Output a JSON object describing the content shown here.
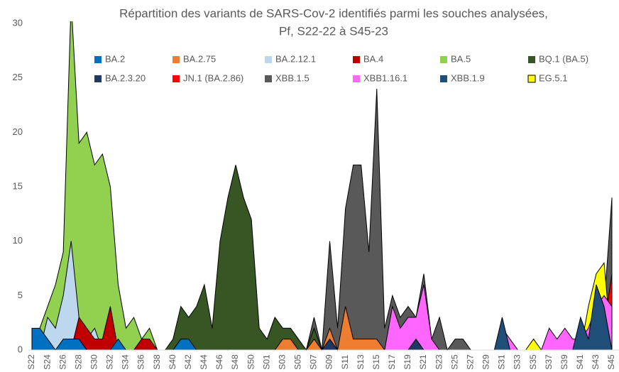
{
  "chart_data": {
    "type": "area",
    "title": [
      "Répartition des variants de SARS-Cov-2 identifiés parmi les souches analysées,",
      "Pf, S22-22 à S45-23"
    ],
    "categories": [
      "S22",
      null,
      "S24",
      null,
      "S26",
      null,
      "S28",
      null,
      "S30",
      null,
      "S32",
      null,
      "S34",
      null,
      "S36",
      null,
      "S38",
      null,
      "S40",
      null,
      "S42",
      null,
      "S44",
      null,
      "S46",
      null,
      "S48",
      null,
      "S50",
      null,
      "S01",
      null,
      "S03",
      null,
      "S05",
      null,
      "S07",
      null,
      "S09",
      null,
      "S11",
      null,
      "S13",
      null,
      "S15",
      null,
      "S17",
      null,
      "S19",
      null,
      "S21",
      null,
      "S23",
      null,
      "S25",
      null,
      "S27",
      null,
      "S29",
      null,
      "S31",
      null,
      "S33",
      null,
      "S35",
      null,
      "S37",
      null,
      "S39",
      null,
      "S41",
      null,
      "S43",
      null,
      "S45"
    ],
    "ylim": [
      0,
      30
    ],
    "yticks": [
      0,
      5,
      10,
      15,
      20,
      25,
      30
    ],
    "series": [
      {
        "name": "BA.2",
        "color": "#0070c0",
        "values": [
          2,
          2,
          1,
          0,
          1,
          1,
          1,
          0,
          0,
          0,
          0,
          1,
          0,
          0,
          0,
          0,
          0,
          0,
          0,
          1,
          1,
          0,
          0,
          0,
          0,
          0,
          0,
          0,
          0,
          0,
          0,
          0,
          0,
          0,
          0,
          0,
          0,
          0,
          0,
          0,
          0,
          0,
          0,
          0,
          0,
          0,
          0,
          0,
          0,
          0,
          0,
          0,
          0,
          0,
          0,
          0,
          0,
          0,
          0,
          0,
          0,
          0,
          0,
          0,
          0,
          0,
          0,
          0,
          0,
          0,
          0,
          0,
          0,
          0,
          0
        ]
      },
      {
        "name": "BA.2.75",
        "color": "#ed7d31",
        "values": [
          0,
          0,
          0,
          0,
          0,
          0,
          0,
          0,
          0,
          0,
          0,
          0,
          0,
          0,
          0,
          0,
          0,
          0,
          0,
          0,
          0,
          0,
          0,
          0,
          0,
          0,
          0,
          0,
          0,
          0,
          0,
          0,
          1,
          1,
          0,
          0,
          1,
          0,
          2,
          0,
          4,
          1,
          1,
          1,
          1,
          0,
          0,
          0,
          0,
          0,
          0,
          0,
          0,
          0,
          0,
          0,
          0,
          0,
          0,
          0,
          0,
          0,
          0,
          0,
          0,
          0,
          0,
          0,
          0,
          0,
          0,
          0,
          0,
          0,
          0
        ]
      },
      {
        "name": "BA.2.12.1",
        "color": "#bdd7ee",
        "values": [
          0,
          0,
          3,
          2,
          5,
          10,
          3,
          1,
          2,
          0,
          0,
          0,
          0,
          0,
          0,
          0,
          0,
          0,
          0,
          0,
          0,
          0,
          0,
          0,
          0,
          0,
          0,
          0,
          0,
          0,
          0,
          0,
          0,
          0,
          0,
          0,
          0,
          0,
          0,
          0,
          0,
          0,
          0,
          0,
          0,
          0,
          0,
          0,
          0,
          0,
          0,
          0,
          0,
          0,
          0,
          0,
          0,
          0,
          0,
          0,
          0,
          0,
          0,
          0,
          0,
          0,
          0,
          0,
          0,
          0,
          0,
          0,
          0,
          0,
          0
        ]
      },
      {
        "name": "BA.4",
        "color": "#c00000",
        "values": [
          0,
          0,
          0,
          0,
          0,
          0,
          3,
          2,
          1,
          1,
          4,
          0,
          0,
          0,
          1,
          1,
          0,
          0,
          0,
          0,
          0,
          0,
          0,
          0,
          0,
          0,
          0,
          0,
          0,
          0,
          0,
          0,
          0,
          0,
          0,
          0,
          0,
          0,
          0,
          0,
          0,
          0,
          0,
          0,
          0,
          0,
          0,
          0,
          0,
          0,
          0,
          0,
          0,
          0,
          0,
          0,
          0,
          0,
          0,
          0,
          0,
          0,
          0,
          0,
          0,
          0,
          0,
          0,
          0,
          0,
          0,
          0,
          0,
          0,
          0
        ]
      },
      {
        "name": "BA.5",
        "color": "#92d050",
        "values": [
          0,
          2,
          4,
          6,
          9,
          32,
          19,
          20,
          17,
          18,
          15,
          6,
          2,
          3,
          1,
          2,
          0,
          0,
          0,
          3,
          3,
          2,
          2,
          2,
          1,
          0,
          2,
          0,
          0,
          0,
          0,
          0,
          0,
          0,
          0,
          0,
          0,
          0,
          0,
          0,
          0,
          0,
          0,
          0,
          0,
          0,
          0,
          0,
          0,
          0,
          0,
          0,
          0,
          0,
          0,
          0,
          0,
          0,
          0,
          0,
          0,
          0,
          0,
          0,
          0,
          0,
          0,
          0,
          0,
          0,
          0,
          0,
          0,
          0,
          0
        ]
      },
      {
        "name": "BQ.1 (BA.5)",
        "color": "#375623",
        "values": [
          0,
          0,
          0,
          0,
          0,
          0,
          0,
          0,
          0,
          0,
          0,
          0,
          0,
          0,
          0,
          0,
          0,
          0,
          1,
          4,
          3,
          4,
          6,
          2,
          10,
          14,
          17,
          14,
          12,
          2,
          1,
          3,
          2,
          2,
          1,
          0,
          2,
          0,
          0,
          0,
          0,
          0,
          0,
          0,
          0,
          0,
          0,
          0,
          0,
          0,
          0,
          0,
          0,
          0,
          0,
          0,
          0,
          0,
          0,
          0,
          0,
          0,
          0,
          0,
          0,
          0,
          0,
          0,
          0,
          0,
          0,
          0,
          0,
          0,
          0
        ]
      },
      {
        "name": "BA.2.3.20",
        "color": "#203864",
        "values": [
          0,
          0,
          0,
          0,
          0,
          0,
          0,
          0,
          0,
          0,
          0,
          0,
          0,
          0,
          0,
          0,
          0,
          0,
          0,
          0,
          0,
          0,
          0,
          0,
          0,
          0,
          0,
          0,
          0,
          0,
          0,
          0,
          0,
          0,
          0,
          0,
          0,
          0,
          1,
          0,
          0,
          0,
          0,
          0,
          0,
          0,
          0,
          0,
          0,
          1,
          0,
          0,
          0,
          0,
          0,
          0,
          0,
          0,
          0,
          0,
          0,
          0,
          0,
          0,
          0,
          0,
          0,
          0,
          0,
          0,
          0,
          0,
          0,
          0,
          0
        ]
      },
      {
        "name": "JN.1 (BA.2.86)",
        "color": "#ff0000",
        "values": [
          0,
          0,
          0,
          0,
          0,
          0,
          0,
          0,
          0,
          0,
          0,
          0,
          0,
          0,
          0,
          0,
          0,
          0,
          0,
          0,
          0,
          0,
          0,
          0,
          0,
          0,
          0,
          0,
          0,
          0,
          0,
          0,
          0,
          0,
          0,
          0,
          0,
          0,
          0,
          0,
          0,
          0,
          0,
          0,
          0,
          0,
          0,
          0,
          0,
          0,
          0,
          0,
          0,
          0,
          0,
          0,
          0,
          0,
          0,
          0,
          0,
          0,
          0,
          0,
          0,
          0,
          0,
          0,
          0,
          0,
          0,
          0,
          0,
          2,
          7
        ]
      },
      {
        "name": "XBB.1.5",
        "color": "#595959",
        "values": [
          0,
          0,
          0,
          0,
          0,
          0,
          0,
          0,
          0,
          0,
          0,
          0,
          0,
          0,
          0,
          0,
          0,
          0,
          0,
          0,
          0,
          0,
          0,
          0,
          0,
          0,
          0,
          0,
          0,
          0,
          1,
          3,
          2,
          2,
          1,
          0,
          3,
          0,
          10,
          2,
          13,
          17,
          17,
          9,
          24,
          2,
          5,
          3,
          4,
          3,
          7,
          1,
          3,
          0,
          1,
          1,
          0,
          0,
          0,
          0,
          0,
          0,
          0,
          0,
          0,
          0,
          0,
          0,
          0,
          0,
          0,
          0,
          0,
          4,
          14
        ]
      },
      {
        "name": "XBB1.16.1",
        "color": "#ff66ff",
        "values": [
          0,
          0,
          0,
          0,
          0,
          0,
          0,
          0,
          0,
          0,
          0,
          0,
          0,
          0,
          0,
          0,
          0,
          0,
          0,
          0,
          0,
          0,
          0,
          0,
          0,
          0,
          0,
          0,
          0,
          0,
          0,
          0,
          0,
          0,
          0,
          0,
          0,
          0,
          0,
          0,
          0,
          0,
          0,
          0,
          0,
          0,
          4,
          2,
          3,
          3,
          6,
          1,
          0,
          0,
          0,
          0,
          0,
          0,
          0,
          0,
          2,
          1,
          0,
          0,
          0,
          0,
          2,
          1,
          2,
          1,
          1,
          2,
          4,
          5,
          4
        ]
      },
      {
        "name": "XBB.1.9",
        "color": "#1f4e79",
        "values": [
          0,
          0,
          0,
          0,
          0,
          0,
          0,
          0,
          0,
          0,
          0,
          0,
          0,
          0,
          0,
          0,
          0,
          0,
          0,
          0,
          0,
          0,
          0,
          0,
          0,
          0,
          0,
          0,
          0,
          0,
          0,
          0,
          0,
          0,
          0,
          0,
          0,
          0,
          0,
          0,
          0,
          0,
          0,
          0,
          0,
          0,
          0,
          0,
          0,
          0,
          0,
          0,
          0,
          0,
          0,
          0,
          0,
          0,
          0,
          0,
          3,
          0,
          0,
          0,
          0,
          0,
          0,
          0,
          0,
          0,
          3,
          1,
          6,
          4,
          0
        ]
      },
      {
        "name": "EG.5.1",
        "color": "#ffff00",
        "values": [
          0,
          0,
          0,
          0,
          0,
          0,
          0,
          0,
          0,
          0,
          0,
          0,
          0,
          0,
          0,
          0,
          0,
          0,
          0,
          0,
          0,
          0,
          0,
          0,
          0,
          0,
          0,
          0,
          0,
          0,
          0,
          0,
          0,
          0,
          0,
          0,
          0,
          0,
          0,
          0,
          0,
          0,
          0,
          0,
          0,
          0,
          0,
          0,
          0,
          0,
          0,
          0,
          0,
          0,
          0,
          0,
          0,
          0,
          0,
          0,
          0,
          0,
          0,
          0,
          1,
          0,
          0,
          0,
          0,
          0,
          0,
          4,
          7,
          8,
          0
        ]
      }
    ]
  }
}
